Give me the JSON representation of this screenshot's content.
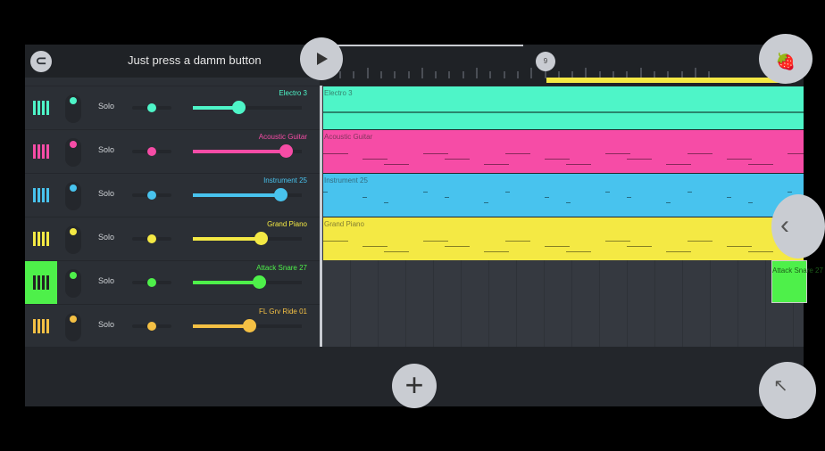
{
  "header": {
    "title": "Just press a damm button",
    "marker_label": "9"
  },
  "playback_progress": 0.4,
  "tracks": [
    {
      "name": "Electro 3",
      "solo": "Solo",
      "color": "#4ef5c8",
      "pan": 0.5,
      "volume": 0.42,
      "selected": false
    },
    {
      "name": "Acoustic Guitar",
      "solo": "Solo",
      "color": "#f64ca6",
      "pan": 0.5,
      "volume": 0.85,
      "selected": false
    },
    {
      "name": "Instrument 25",
      "solo": "Solo",
      "color": "#48c3ee",
      "pan": 0.5,
      "volume": 0.8,
      "selected": false
    },
    {
      "name": "Grand Piano",
      "solo": "Solo",
      "color": "#f4e944",
      "pan": 0.5,
      "volume": 0.62,
      "selected": false
    },
    {
      "name": "Attack Snare 27",
      "solo": "Solo",
      "color": "#4ef04a",
      "pan": 0.5,
      "volume": 0.61,
      "selected": true
    },
    {
      "name": "FL Grv Ride 01",
      "solo": "Solo",
      "color": "#f4c044",
      "pan": 0.5,
      "volume": 0.52,
      "selected": false
    }
  ],
  "patterns": [
    {
      "label": "Electro 3",
      "color": "#4ef5c8"
    },
    {
      "label": "Acoustic Guitar",
      "color": "#f64ca6"
    },
    {
      "label": "Instrument 25",
      "color": "#48c3ee"
    },
    {
      "label": "Grand Piano",
      "color": "#f4e944"
    }
  ],
  "snare_pattern": {
    "label": "Attack Snare 27",
    "color": "#4ef04a"
  },
  "icons": {
    "magnet": "magnet-icon",
    "play": "play-icon",
    "fl_logo": "fruit-logo-icon",
    "add": "plus-icon",
    "back": "chevron-left-icon",
    "expand": "arrow-up-left-icon"
  }
}
